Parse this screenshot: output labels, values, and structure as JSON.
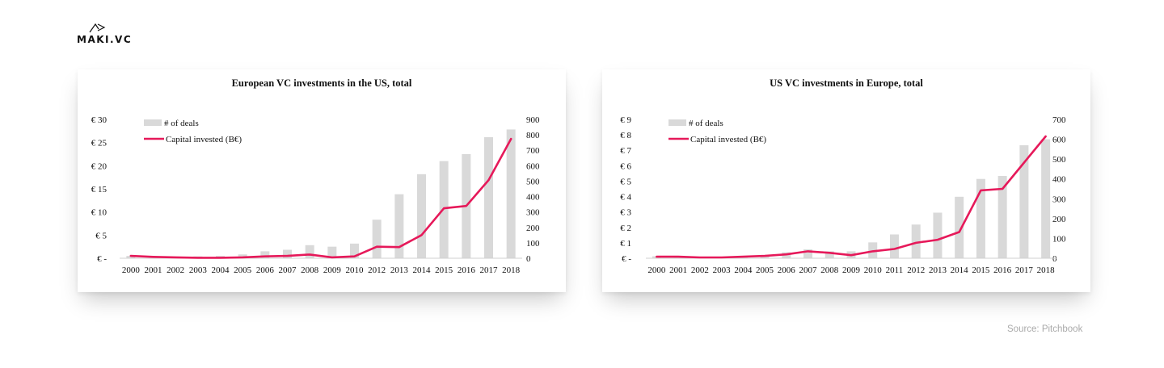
{
  "brand": {
    "logo_text": "MAKI.VC"
  },
  "source": "Source: Pitchbook",
  "colors": {
    "bar": "#d9d9d9",
    "line": "#e6195a"
  },
  "chart_data": [
    {
      "type": "bar",
      "title": "European VC investments in the US, total",
      "categories": [
        "2000",
        "2001",
        "2002",
        "2003",
        "2004",
        "2005",
        "2006",
        "2007",
        "2008",
        "2009",
        "2010",
        "2012",
        "2013",
        "2014",
        "2015",
        "2016",
        "2017",
        "2018"
      ],
      "series": [
        {
          "name": "# of deals",
          "type": "bar",
          "axis": "right",
          "values": [
            15,
            10,
            10,
            12,
            15,
            25,
            45,
            55,
            85,
            75,
            95,
            250,
            415,
            545,
            630,
            675,
            785,
            835
          ]
        },
        {
          "name": "Capital invested (B€)",
          "type": "line",
          "axis": "left",
          "values": [
            0.5,
            0.3,
            0.2,
            0.1,
            0.1,
            0.2,
            0.4,
            0.5,
            0.8,
            0.2,
            0.4,
            2.5,
            2.4,
            5.0,
            10.8,
            11.3,
            16.9,
            25.8
          ]
        }
      ],
      "y_left": {
        "ticks": [
          "€ 30",
          "€ 25",
          "€ 20",
          "€ 15",
          "€ 10",
          "€ 5",
          "€ -"
        ],
        "ylim": [
          0,
          30
        ]
      },
      "y_right": {
        "ticks": [
          "900",
          "800",
          "700",
          "600",
          "500",
          "400",
          "300",
          "200",
          "100",
          "0"
        ],
        "ylim": [
          0,
          900
        ]
      },
      "legend_position": "top-left",
      "grid": false
    },
    {
      "type": "bar",
      "title": "US VC investments in Europe, total",
      "categories": [
        "2000",
        "2001",
        "2002",
        "2003",
        "2004",
        "2005",
        "2006",
        "2007",
        "2008",
        "2009",
        "2010",
        "2011",
        "2012",
        "2013",
        "2014",
        "2015",
        "2016",
        "2017",
        "2018"
      ],
      "series": [
        {
          "name": "# of deals",
          "type": "bar",
          "axis": "right",
          "values": [
            10,
            5,
            5,
            5,
            10,
            15,
            30,
            45,
            35,
            35,
            80,
            120,
            170,
            230,
            310,
            400,
            415,
            570,
            600
          ]
        },
        {
          "name": "Capital invested (B€)",
          "type": "line",
          "axis": "left",
          "values": [
            0.1,
            0.1,
            0.05,
            0.05,
            0.1,
            0.15,
            0.25,
            0.45,
            0.35,
            0.2,
            0.45,
            0.6,
            1.0,
            1.2,
            1.7,
            4.4,
            4.5,
            6.2,
            7.9
          ]
        }
      ],
      "y_left": {
        "ticks": [
          "€ 9",
          "€ 8",
          "€ 7",
          "€ 6",
          "€ 5",
          "€ 4",
          "€ 3",
          "€ 2",
          "€ 1",
          "€ -"
        ],
        "ylim": [
          0,
          9
        ]
      },
      "y_right": {
        "ticks": [
          "700",
          "600",
          "500",
          "400",
          "300",
          "200",
          "100",
          "0"
        ],
        "ylim": [
          0,
          700
        ]
      },
      "legend_position": "top-left",
      "grid": false
    }
  ]
}
